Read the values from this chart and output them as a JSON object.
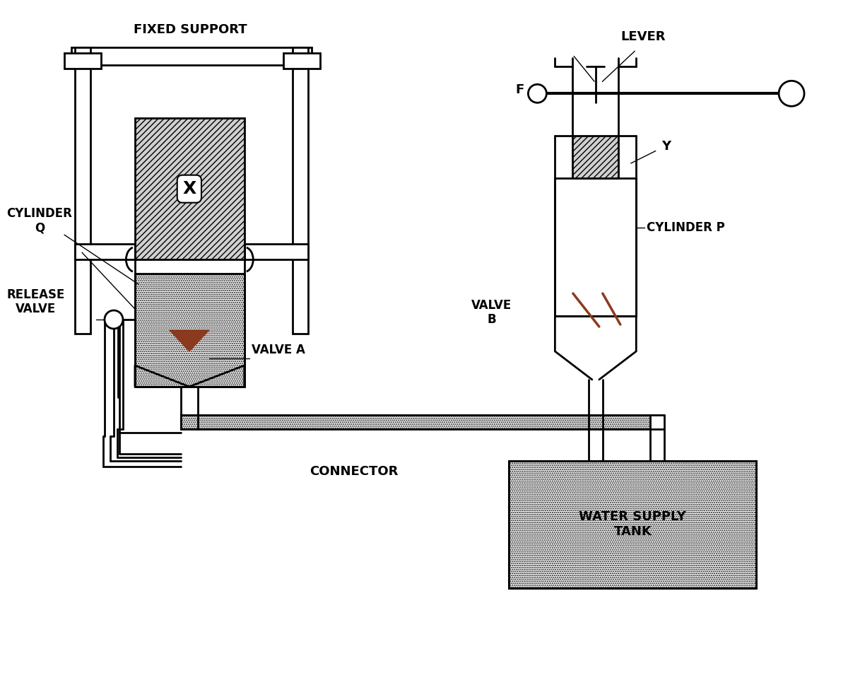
{
  "bg_color": "#ffffff",
  "line_color": "#000000",
  "water_color": "#ffffff",
  "hatch_gray": "#cccccc",
  "valve_color": "#8B3A1F",
  "dot_water_color": "#e8e8e8",
  "title_color": "#000000",
  "lw": 2.0,
  "labels": {
    "fixed_support": "FIXED SUPPORT",
    "cylinder_q": "CYLINDER\nQ",
    "release_valve": "RELEASE\nVALVE",
    "valve_a": "VALVE A",
    "valve_b": "VALVE\nB",
    "cylinder_p": "CYLINDER P",
    "lever": "LEVER",
    "connector": "CONNECTOR",
    "water_supply": "WATER SUPPLY\nTANK",
    "X": "X",
    "Y": "Y",
    "F": "F"
  }
}
